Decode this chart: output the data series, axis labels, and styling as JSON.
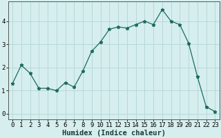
{
  "humidex_x": [
    0,
    1,
    2,
    3,
    4,
    5,
    6,
    7,
    8,
    9,
    10,
    11,
    12,
    13,
    14,
    15,
    16,
    17,
    18,
    19,
    20,
    21,
    22,
    23
  ],
  "humidex_y": [
    1.3,
    2.1,
    1.75,
    1.1,
    1.1,
    1.0,
    1.35,
    1.15,
    1.85,
    2.7,
    3.1,
    3.65,
    3.75,
    3.7,
    3.85,
    4.0,
    3.85,
    4.5,
    4.0,
    3.85,
    3.05,
    1.6,
    0.3,
    0.1
  ],
  "xlabel": "Humidex (Indice chaleur)",
  "ylabel": "",
  "ylim": [
    -0.25,
    4.85
  ],
  "xlim": [
    -0.5,
    23.5
  ],
  "line_color": "#1a6b5e",
  "bg_color": "#d6eeee",
  "grid_color": "#b8d8d8",
  "yticks": [
    0,
    1,
    2,
    3,
    4
  ],
  "xticks": [
    0,
    1,
    2,
    3,
    4,
    5,
    6,
    7,
    8,
    9,
    10,
    11,
    12,
    13,
    14,
    15,
    16,
    17,
    18,
    19,
    20,
    21,
    22,
    23
  ],
  "tick_fontsize": 6.5,
  "xlabel_fontsize": 7.5
}
